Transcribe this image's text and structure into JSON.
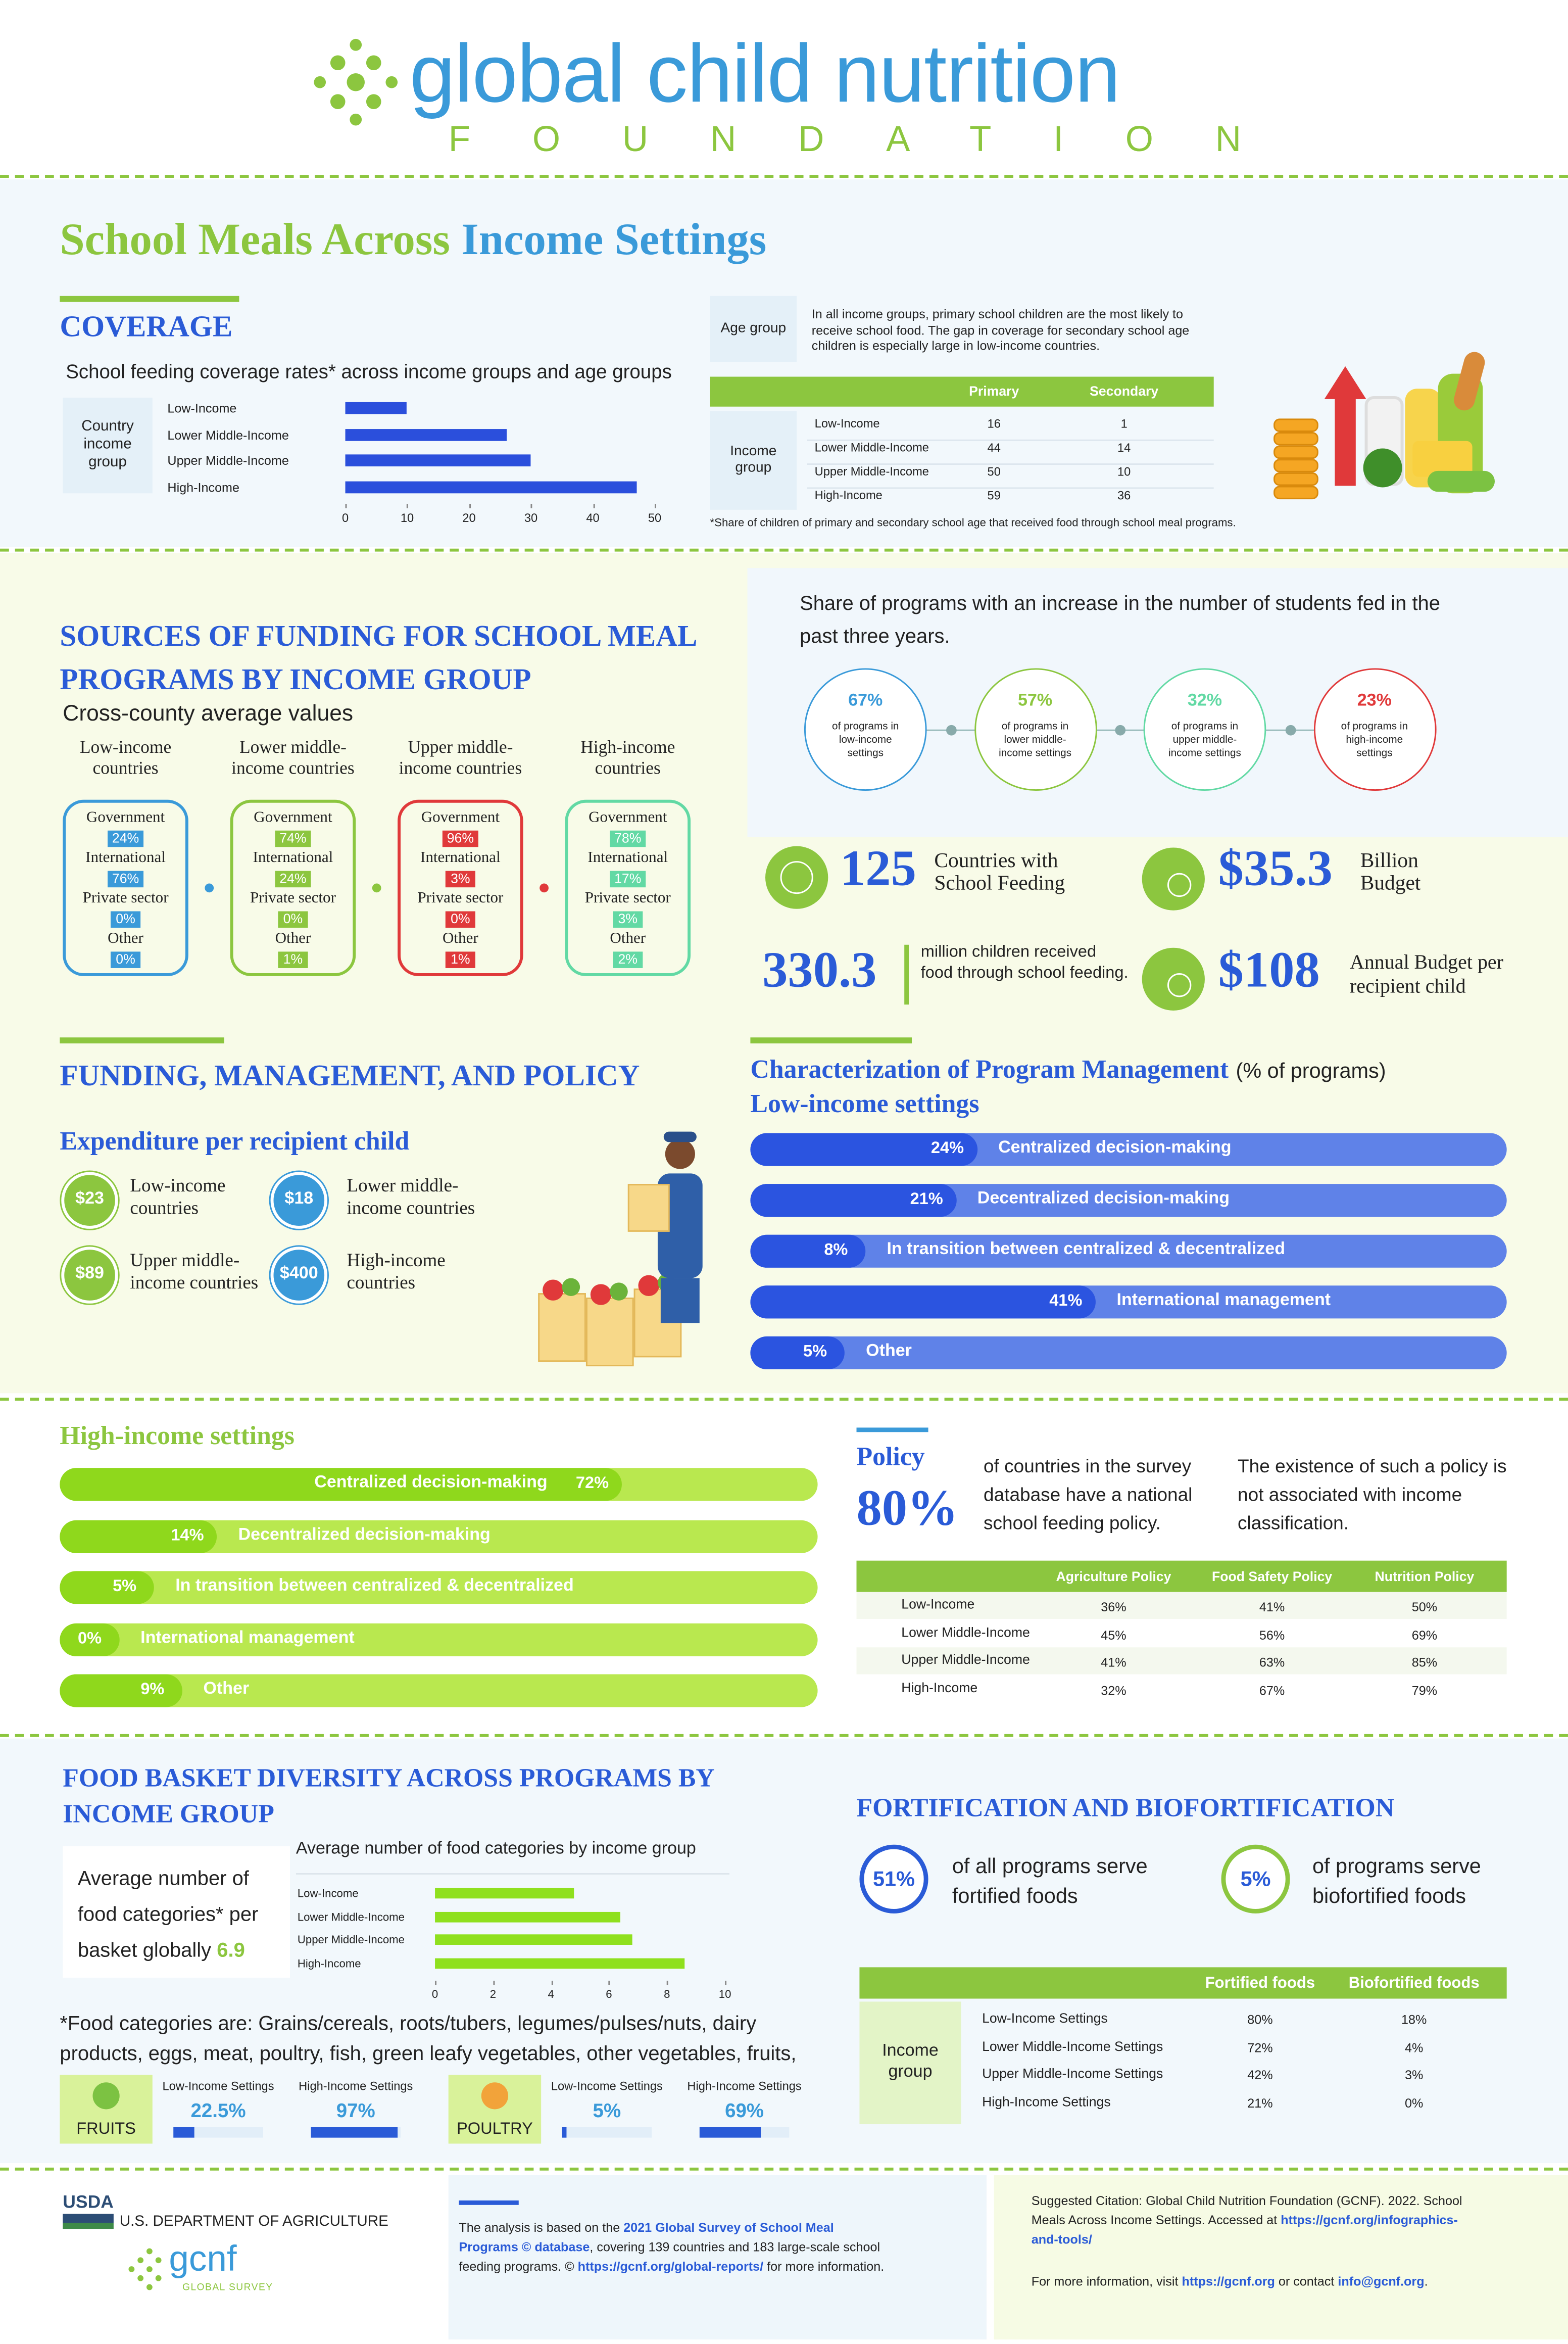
{
  "header": {
    "logo": "global child nutrition",
    "logo_sub": "FOUNDATION"
  },
  "title": {
    "green": "School Meals Across",
    "blue": "Income Settings"
  },
  "coverage": {
    "heading": "COVERAGE",
    "age_table": {
      "label": "Age group",
      "text": "In all income groups, primary school children are the most likely to receive school food. The gap in coverage for secondary school age children is especially large in low-income countries.",
      "row_label": "Income group",
      "columns": [
        "Primary",
        "Secondary"
      ],
      "rows": [
        [
          "Low-Income",
          "16",
          "1"
        ],
        [
          "Lower Middle-Income",
          "44",
          "14"
        ],
        [
          "Upper Middle-Income",
          "50",
          "10"
        ],
        [
          "High-Income",
          "59",
          "36"
        ]
      ],
      "note": "*Share of children of primary and secondary school age that received food through school meal programs."
    }
  },
  "chart_data": [
    {
      "type": "bar",
      "orientation": "horizontal",
      "title": "School feeding coverage rates* across income groups and age groups",
      "ylabel": "Country income group",
      "categories": [
        "Low-Income",
        "Lower Middle-Income",
        "Upper Middle-Income",
        "High-Income"
      ],
      "values": [
        10,
        26,
        30,
        47
      ],
      "color": "#2b4fdc",
      "xlim": [
        0,
        50
      ],
      "xticks": [
        0,
        10,
        20,
        30,
        40,
        50
      ]
    },
    {
      "type": "bar",
      "orientation": "horizontal",
      "title": "Average number of food categories by income group",
      "categories": [
        "Low-Income",
        "Lower Middle-Income",
        "Upper Middle-Income",
        "High-Income"
      ],
      "values": [
        4.8,
        6.4,
        6.8,
        8.6
      ],
      "color": "#8fe01e",
      "xlim": [
        0,
        10
      ],
      "xticks": [
        0,
        2,
        4,
        6,
        8,
        10
      ]
    }
  ],
  "funding": {
    "heading": "SOURCES OF FUNDING FOR SCHOOL MEAL PROGRAMS BY INCOME GROUP",
    "subtitle": "Cross-county average values",
    "groups": [
      {
        "name": "Low-income countries",
        "color": "#3a9ad9",
        "items": [
          {
            "label": "Government",
            "value": "24%"
          },
          {
            "label": "International",
            "value": "76%"
          },
          {
            "label": "Private sector",
            "value": "0%"
          },
          {
            "label": "Other",
            "value": "0%"
          }
        ]
      },
      {
        "name": "Lower middle-income countries",
        "color": "#8cc63f",
        "items": [
          {
            "label": "Government",
            "value": "74%"
          },
          {
            "label": "International",
            "value": "24%"
          },
          {
            "label": "Private sector",
            "value": "0%"
          },
          {
            "label": "Other",
            "value": "1%"
          }
        ]
      },
      {
        "name": "Upper middle-income countries",
        "color": "#e0393a",
        "items": [
          {
            "label": "Government",
            "value": "96%"
          },
          {
            "label": "International",
            "value": "3%"
          },
          {
            "label": "Private sector",
            "value": "0%"
          },
          {
            "label": "Other",
            "value": "1%"
          }
        ]
      },
      {
        "name": "High-income countries",
        "color": "#62d9a4",
        "items": [
          {
            "label": "Government",
            "value": "78%"
          },
          {
            "label": "International",
            "value": "17%"
          },
          {
            "label": "Private sector",
            "value": "3%"
          },
          {
            "label": "Other",
            "value": "2%"
          }
        ]
      }
    ]
  },
  "increase": {
    "text": "Share of programs with an increase in the number of students fed in the past three years.",
    "items": [
      {
        "value": "67%",
        "label": "of programs in low-income settings",
        "color": "#3a9ad9"
      },
      {
        "value": "57%",
        "label": "of programs in lower middle-income settings",
        "color": "#8cc63f"
      },
      {
        "value": "32%",
        "label": "of programs in upper middle-income settings",
        "color": "#62d9a4"
      },
      {
        "value": "23%",
        "label": "of programs in high-income settings",
        "color": "#e0393a"
      }
    ]
  },
  "stats": {
    "countries": {
      "value": "125",
      "label": "Countries with School Feeding"
    },
    "budget": {
      "value": "$35.3",
      "label": "Billion Budget"
    },
    "children": {
      "value": "330.3",
      "label": "million children received food through school feeding."
    },
    "per_child": {
      "value": "$108",
      "label": "Annual Budget per recipient child"
    }
  },
  "management": {
    "heading": "FUNDING, MANAGEMENT, AND POLICY",
    "expenditure_heading": "Expenditure per recipient child",
    "expenditure": [
      {
        "value": "$23",
        "label": "Low-income countries",
        "color": "#8cc63f"
      },
      {
        "value": "$18",
        "label": "Lower middle-income countries",
        "color": "#3a9ad9"
      },
      {
        "value": "$89",
        "label": "Upper middle-income countries",
        "color": "#8cc63f"
      },
      {
        "value": "$400",
        "label": "High-income countries",
        "color": "#3a9ad9"
      }
    ]
  },
  "characterization": {
    "heading": "Characterization of Program Management",
    "unit": "(% of programs)",
    "low_title": "Low-income settings",
    "low": [
      {
        "label": "Centralized decision-making",
        "value": 24,
        "value_label": "24%"
      },
      {
        "label": "Decentralized decision-making",
        "value": 21,
        "value_label": "21%"
      },
      {
        "label": "In transition between centralized & decentralized",
        "value": 8,
        "value_label": "8%"
      },
      {
        "label": "International management",
        "value": 41,
        "value_label": "41%"
      },
      {
        "label": "Other",
        "value": 5,
        "value_label": "5%"
      }
    ],
    "high_title": "High-income settings",
    "high": [
      {
        "label": "Centralized decision-making",
        "value": 72,
        "value_label": "72%"
      },
      {
        "label": "Decentralized decision-making",
        "value": 14,
        "value_label": "14%"
      },
      {
        "label": "In transition between centralized & decentralized",
        "value": 5,
        "value_label": "5%"
      },
      {
        "label": "International management",
        "value": 0,
        "value_label": "0%"
      },
      {
        "label": "Other",
        "value": 9,
        "value_label": "9%"
      }
    ]
  },
  "policy": {
    "heading": "Policy",
    "value": "80%",
    "text": "of countries in the survey database have a national school feeding policy.",
    "note": "The existence of such a policy is not associated with income classification.",
    "columns": [
      "Agriculture Policy",
      "Food Safety Policy",
      "Nutrition Policy"
    ],
    "rows": [
      [
        "Low-Income",
        "36%",
        "41%",
        "50%"
      ],
      [
        "Lower Middle-Income",
        "45%",
        "56%",
        "69%"
      ],
      [
        "Upper Middle-Income",
        "41%",
        "63%",
        "85%"
      ],
      [
        "High-Income",
        "32%",
        "67%",
        "79%"
      ]
    ]
  },
  "food": {
    "heading": "FOOD BASKET DIVERSITY ACROSS PROGRAMS BY INCOME GROUP",
    "box_text": "Average number of food categories* per basket globally",
    "box_value": "6.9",
    "note": "*Food categories are: Grains/cereals, roots/tubers, legumes/pulses/nuts, dairy products, eggs, meat, poultry, fish, green leafy vegetables, other vegetables, fruits, oil",
    "comparisons": [
      {
        "name": "FRUITS",
        "settings": [
          {
            "label": "Low-Income Settings",
            "value": 22.5,
            "value_label": "22.5%"
          },
          {
            "label": "High-Income Settings",
            "value": 97,
            "value_label": "97%"
          }
        ]
      },
      {
        "name": "POULTRY",
        "settings": [
          {
            "label": "Low-Income Settings",
            "value": 5,
            "value_label": "5%"
          },
          {
            "label": "High-Income Settings",
            "value": 69,
            "value_label": "69%"
          }
        ]
      }
    ]
  },
  "fortification": {
    "heading": "FORTIFICATION AND BIOFORTIFICATION",
    "stats": [
      {
        "value": "51%",
        "text": "of all programs serve fortified foods",
        "color": "#2a5bd7"
      },
      {
        "value": "5%",
        "text": "of programs serve biofortified foods",
        "color": "#8cc63f"
      }
    ],
    "columns": [
      "Fortified foods",
      "Biofortified foods"
    ],
    "row_label": "Income group",
    "rows": [
      [
        "Low-Income Settings",
        "80%",
        "18%"
      ],
      [
        "Lower Middle-Income Settings",
        "72%",
        "4%"
      ],
      [
        "Upper Middle-Income Settings",
        "42%",
        "3%"
      ],
      [
        "High-Income Settings",
        "21%",
        "0%"
      ]
    ]
  },
  "footer": {
    "usda": "USDA",
    "usda_name": "U.S. DEPARTMENT OF AGRICULTURE",
    "gcnf": "gcnf",
    "gcnf_sub": "GLOBAL SURVEY",
    "analysis": [
      "The analysis is based on the ",
      "2021 Global Survey of School Meal Programs © database",
      ", covering 139 countries and 183 large-scale school feeding programs. © ",
      "https://gcnf.org/global-reports/",
      " for more information."
    ],
    "citation": [
      "Suggested Citation: Global Child Nutrition Foundation (GCNF). 2022. School Meals Across Income Settings. Accessed at ",
      "https://gcnf.org/infographics-and-tools/"
    ],
    "contact": [
      "For more information,  visit ",
      "https://gcnf.org",
      " or contact ",
      "info@gcnf.org",
      "."
    ]
  }
}
